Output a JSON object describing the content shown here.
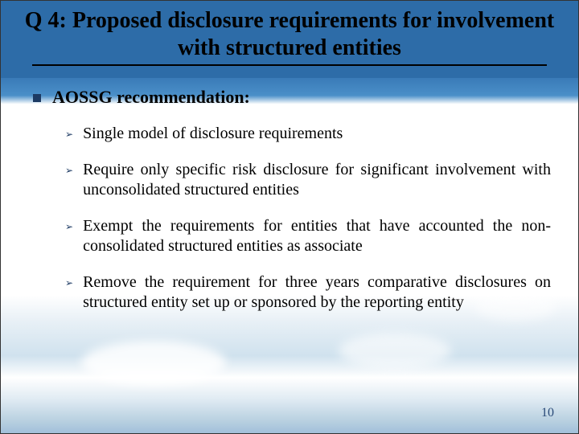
{
  "title": "Q 4: Proposed disclosure requirements for involvement with structured entities",
  "topBullet": {
    "prefix": "AOSSG ",
    "rest": "recommendation:"
  },
  "subItems": [
    "Single model of disclosure requirements",
    "Require only specific risk disclosure for significant involvement with unconsolidated structured entities",
    "Exempt the requirements for entities that have accounted the non-consolidated structured entities as associate",
    "Remove the requirement for three years comparative disclosures on structured entity set up or sponsored by the reporting entity"
  ],
  "pageNumber": "10",
  "colors": {
    "bulletColor": "#1c3a63",
    "headerBand": "#2d6ca8"
  }
}
